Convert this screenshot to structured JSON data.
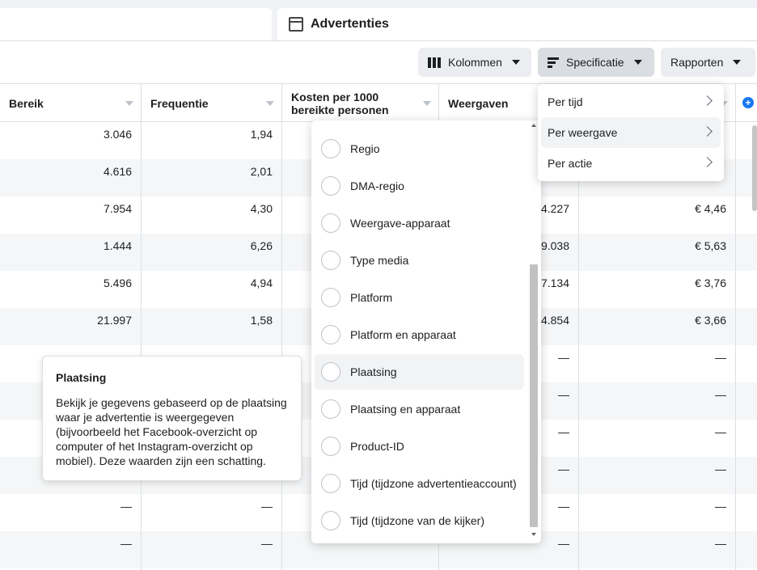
{
  "header": {
    "active_tab_title": "Advertenties"
  },
  "toolbar": {
    "columns_label": "Kolommen",
    "breakdown_label": "Specificatie",
    "reports_label": "Rapporten"
  },
  "table": {
    "columns": [
      {
        "label": "Bereik"
      },
      {
        "label": "Frequentie"
      },
      {
        "label": "Kosten per 1000 bereikte personen"
      },
      {
        "label": "Weergaven"
      },
      {
        "label": ""
      }
    ],
    "rows": [
      {
        "bereik": "3.046",
        "frequentie": "1,94",
        "weergaven": "",
        "kosten": ""
      },
      {
        "bereik": "4.616",
        "frequentie": "2,01",
        "weergaven": "",
        "kosten": ""
      },
      {
        "bereik": "7.954",
        "frequentie": "4,30",
        "weergaven": "4.227",
        "kosten": "€ 4,46"
      },
      {
        "bereik": "1.444",
        "frequentie": "6,26",
        "weergaven": "9.038",
        "kosten": "€ 5,63"
      },
      {
        "bereik": "5.496",
        "frequentie": "4,94",
        "weergaven": "7.134",
        "kosten": "€ 3,76"
      },
      {
        "bereik": "21.997",
        "frequentie": "1,58",
        "weergaven": "4.854",
        "kosten": "€ 3,66"
      },
      {
        "bereik": "",
        "frequentie": "",
        "weergaven": "—",
        "kosten": "—"
      },
      {
        "bereik": "",
        "frequentie": "",
        "weergaven": "—",
        "kosten": "—"
      },
      {
        "bereik": "",
        "frequentie": "",
        "weergaven": "—",
        "kosten": "—"
      },
      {
        "bereik": "",
        "frequentie": "",
        "weergaven": "—",
        "kosten": "—"
      },
      {
        "bereik": "—",
        "frequentie": "—",
        "weergaven": "—",
        "kosten": "—"
      },
      {
        "bereik": "—",
        "frequentie": "—",
        "weergaven": "—",
        "kosten": "—"
      }
    ]
  },
  "tooltip": {
    "title": "Plaatsing",
    "body": "Bekijk je gegevens gebaseerd op de plaatsing waar je advertentie is weergegeven (bijvoorbeeld het Facebook-overzicht op computer of het Instagram-overzicht op mobiel). Deze waarden zijn een schatting."
  },
  "breakdown_list": {
    "options": [
      "Regio",
      "DMA-regio",
      "Weergave-apparaat",
      "Type media",
      "Platform",
      "Platform en apparaat",
      "Plaatsing",
      "Plaatsing en apparaat",
      "Product-ID",
      "Tijd (tijdzone advertentieaccount)",
      "Tijd (tijdzone van de kijker)"
    ],
    "hovered": "Plaatsing"
  },
  "submenu": {
    "items": [
      "Per tijd",
      "Per weergave",
      "Per actie"
    ],
    "active": "Per weergave"
  }
}
